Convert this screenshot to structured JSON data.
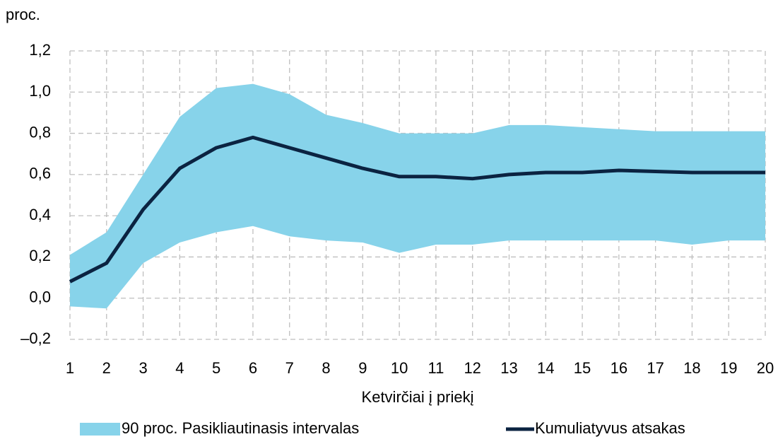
{
  "chart_data": {
    "type": "line",
    "y_axis_label": "proc.",
    "x_axis_label": "Ketvirčiai į priekį",
    "x": [
      1,
      2,
      3,
      4,
      5,
      6,
      7,
      8,
      9,
      10,
      11,
      12,
      13,
      14,
      15,
      16,
      17,
      18,
      19,
      20
    ],
    "xlim": [
      1,
      20
    ],
    "xticks": [
      1,
      2,
      3,
      4,
      5,
      6,
      7,
      8,
      9,
      10,
      11,
      12,
      13,
      14,
      15,
      16,
      17,
      18,
      19,
      20
    ],
    "ylim": [
      -0.2,
      1.2
    ],
    "yticks": [
      {
        "value": -0.2,
        "label": "–0,2"
      },
      {
        "value": 0,
        "label": "0,0"
      },
      {
        "value": 0.2,
        "label": "0,2"
      },
      {
        "value": 0.4,
        "label": "0,4"
      },
      {
        "value": 0.6,
        "label": "0,6"
      },
      {
        "value": 0.8,
        "label": "0,8"
      },
      {
        "value": 1.0,
        "label": "1,0"
      },
      {
        "value": 1.2,
        "label": "1,2"
      }
    ],
    "grid": true,
    "legend": "bottom",
    "series": [
      {
        "name": "90 proc. Pasikliautinasis intervalas",
        "type": "band",
        "color": "#87d3ea",
        "upper": [
          0.21,
          0.32,
          0.6,
          0.88,
          1.02,
          1.04,
          0.99,
          0.89,
          0.85,
          0.8,
          0.8,
          0.8,
          0.84,
          0.84,
          0.83,
          0.82,
          0.81,
          0.81,
          0.81,
          0.81
        ],
        "lower": [
          -0.04,
          -0.05,
          0.17,
          0.27,
          0.32,
          0.35,
          0.3,
          0.28,
          0.27,
          0.22,
          0.26,
          0.26,
          0.28,
          0.28,
          0.28,
          0.28,
          0.28,
          0.26,
          0.28,
          0.28
        ]
      },
      {
        "name": "Kumuliatyvus atsakas",
        "type": "line",
        "color": "#0b2341",
        "values": [
          0.08,
          0.17,
          0.43,
          0.63,
          0.73,
          0.78,
          0.73,
          0.68,
          0.63,
          0.59,
          0.59,
          0.58,
          0.6,
          0.61,
          0.61,
          0.62,
          0.615,
          0.61,
          0.61,
          0.61
        ]
      }
    ]
  }
}
